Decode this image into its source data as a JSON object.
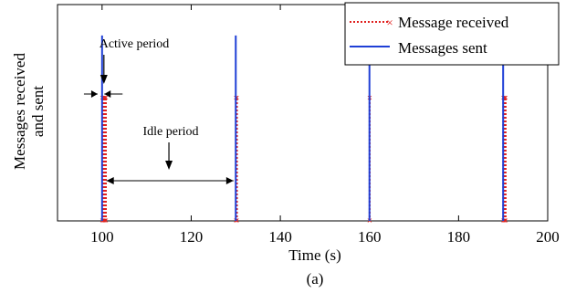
{
  "chart_data": {
    "type": "line",
    "xlabel": "Time (s)",
    "ylabel_line1": "Messages received",
    "ylabel_line2": "and sent",
    "caption": "(a)",
    "xlim": [
      90,
      200
    ],
    "ylim": [
      0,
      1.4
    ],
    "xticks": [
      100,
      120,
      140,
      160,
      180,
      200
    ],
    "xtick_labels": [
      "100",
      "120",
      "140",
      "160",
      "180",
      "200"
    ],
    "grid": false,
    "legend_position": "top-right",
    "series": [
      {
        "name": "Message received",
        "color": "#e0201e",
        "style": "dotted-with-x-markers",
        "spikes": [
          {
            "x_start": 100.0,
            "x_end": 100.9,
            "height": 0.8
          },
          {
            "x_start": 130.0,
            "x_end": 130.3,
            "height": 0.8
          },
          {
            "x_start": 160.0,
            "x_end": 160.1,
            "height": 0.8
          },
          {
            "x_start": 190.0,
            "x_end": 190.6,
            "height": 0.8
          }
        ]
      },
      {
        "name": "Messages sent",
        "color": "#1f3fd6",
        "style": "solid",
        "spikes": [
          {
            "x": 100.0,
            "height": 1.2
          },
          {
            "x": 130.0,
            "height": 1.2
          },
          {
            "x": 160.0,
            "height": 1.2
          },
          {
            "x": 190.0,
            "height": 1.2
          }
        ]
      }
    ],
    "annotations": {
      "active_period": {
        "text": "Active period",
        "x_start": 99.0,
        "x_end": 100.5
      },
      "idle_period": {
        "text": "Idle period",
        "x_start": 101.0,
        "x_end": 129.5,
        "arrow_x": 115.0
      }
    }
  }
}
